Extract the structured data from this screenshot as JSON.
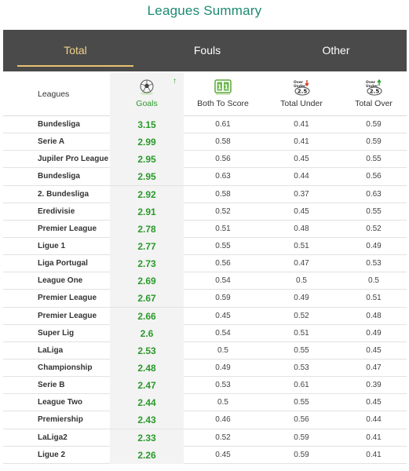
{
  "page": {
    "title": "Leagues Summary"
  },
  "tabs": [
    {
      "label": "Total",
      "active": true
    },
    {
      "label": "Fouls",
      "active": false
    },
    {
      "label": "Other",
      "active": false
    }
  ],
  "columns": {
    "leagues": "Leagues",
    "goals": "Goals",
    "both_to_score": "Both To Score",
    "total_under": "Total Under",
    "total_over": "Total Over",
    "bts_icon_text": "1|1",
    "under_icon_top": "Over Under",
    "under_icon_value": "2.5",
    "over_icon_top": "Over Under",
    "over_icon_value": "2.5"
  },
  "colors": {
    "accent": "#1d8a72",
    "goals": "#2a9a2a",
    "tabbar": "#4a4a4a",
    "active_tab": "#f3d28a"
  },
  "rows": [
    {
      "league": "Bundesliga",
      "goals": "3.15",
      "bts": "0.61",
      "under": "0.41",
      "over": "0.59"
    },
    {
      "league": "Serie A",
      "goals": "2.99",
      "bts": "0.58",
      "under": "0.41",
      "over": "0.59"
    },
    {
      "league": "Jupiler Pro League",
      "goals": "2.95",
      "bts": "0.56",
      "under": "0.45",
      "over": "0.55"
    },
    {
      "league": "Bundesliga",
      "goals": "2.95",
      "bts": "0.63",
      "under": "0.44",
      "over": "0.56"
    },
    {
      "league": "2. Bundesliga",
      "goals": "2.92",
      "bts": "0.58",
      "under": "0.37",
      "over": "0.63"
    },
    {
      "league": "Eredivisie",
      "goals": "2.91",
      "bts": "0.52",
      "under": "0.45",
      "over": "0.55"
    },
    {
      "league": "Premier League",
      "goals": "2.78",
      "bts": "0.51",
      "under": "0.48",
      "over": "0.52"
    },
    {
      "league": "Ligue 1",
      "goals": "2.77",
      "bts": "0.55",
      "under": "0.51",
      "over": "0.49"
    },
    {
      "league": "Liga Portugal",
      "goals": "2.73",
      "bts": "0.56",
      "under": "0.47",
      "over": "0.53"
    },
    {
      "league": "League One",
      "goals": "2.69",
      "bts": "0.54",
      "under": "0.5",
      "over": "0.5"
    },
    {
      "league": "Premier League",
      "goals": "2.67",
      "bts": "0.59",
      "under": "0.49",
      "over": "0.51"
    },
    {
      "league": "Premier League",
      "goals": "2.66",
      "bts": "0.45",
      "under": "0.52",
      "over": "0.48"
    },
    {
      "league": "Super Lig",
      "goals": "2.6",
      "bts": "0.54",
      "under": "0.51",
      "over": "0.49"
    },
    {
      "league": "LaLiga",
      "goals": "2.53",
      "bts": "0.5",
      "under": "0.55",
      "over": "0.45"
    },
    {
      "league": "Championship",
      "goals": "2.48",
      "bts": "0.49",
      "under": "0.53",
      "over": "0.47"
    },
    {
      "league": "Serie B",
      "goals": "2.47",
      "bts": "0.53",
      "under": "0.61",
      "over": "0.39"
    },
    {
      "league": "League Two",
      "goals": "2.44",
      "bts": "0.5",
      "under": "0.55",
      "over": "0.45"
    },
    {
      "league": "Premiership",
      "goals": "2.43",
      "bts": "0.46",
      "under": "0.56",
      "over": "0.44"
    },
    {
      "league": "LaLiga2",
      "goals": "2.33",
      "bts": "0.52",
      "under": "0.59",
      "over": "0.41"
    },
    {
      "league": "Ligue 2",
      "goals": "2.26",
      "bts": "0.45",
      "under": "0.59",
      "over": "0.41"
    }
  ]
}
